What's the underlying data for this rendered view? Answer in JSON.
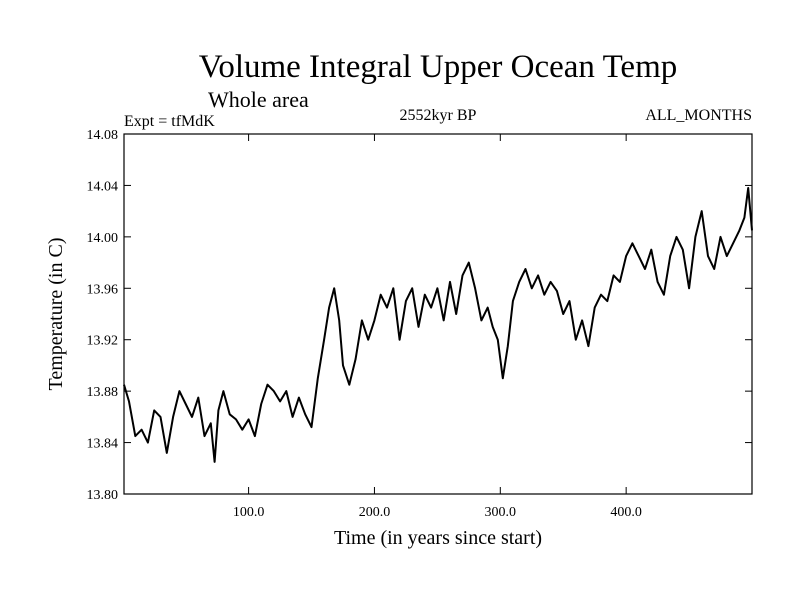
{
  "chart_data": {
    "type": "line",
    "title": "Volume Integral Upper Ocean Temp",
    "subtitle": "Whole area",
    "left_label": "Expt = tfMdK",
    "center_label": "2552kyr BP",
    "right_label": "ALL_MONTHS",
    "xlabel": "Time (in years since start)",
    "ylabel": "Temperature (in C)",
    "xlim": [
      1,
      500
    ],
    "ylim": [
      13.8,
      14.08
    ],
    "x_ticks": [
      100,
      200,
      300,
      400
    ],
    "x_tick_labels": [
      "100.0",
      "200.0",
      "300.0",
      "400.0"
    ],
    "y_ticks": [
      13.8,
      13.84,
      13.88,
      13.92,
      13.96,
      14.0,
      14.04,
      14.08
    ],
    "y_tick_labels": [
      "13.80",
      "13.84",
      "13.88",
      "13.92",
      "13.96",
      "14.00",
      "14.04",
      "14.08"
    ],
    "line_color": "#000000",
    "series": [
      {
        "name": "Volume Integral Upper Ocean Temp",
        "x": [
          1,
          5,
          10,
          15,
          20,
          25,
          30,
          35,
          40,
          45,
          50,
          55,
          60,
          65,
          70,
          73,
          76,
          80,
          85,
          90,
          95,
          100,
          105,
          110,
          115,
          120,
          125,
          130,
          135,
          140,
          145,
          150,
          155,
          160,
          164,
          168,
          172,
          175,
          180,
          185,
          190,
          195,
          200,
          205,
          210,
          215,
          220,
          225,
          230,
          235,
          240,
          245,
          250,
          255,
          260,
          265,
          270,
          275,
          280,
          285,
          290,
          294,
          298,
          302,
          306,
          310,
          315,
          320,
          325,
          330,
          335,
          340,
          345,
          350,
          355,
          360,
          365,
          370,
          375,
          380,
          385,
          390,
          395,
          400,
          405,
          410,
          415,
          420,
          425,
          430,
          435,
          440,
          445,
          450,
          455,
          460,
          465,
          470,
          475,
          480,
          485,
          490,
          494,
          497,
          500
        ],
        "y": [
          13.885,
          13.872,
          13.845,
          13.85,
          13.84,
          13.865,
          13.86,
          13.832,
          13.86,
          13.88,
          13.87,
          13.86,
          13.875,
          13.845,
          13.855,
          13.825,
          13.865,
          13.88,
          13.862,
          13.858,
          13.85,
          13.858,
          13.845,
          13.87,
          13.885,
          13.88,
          13.872,
          13.88,
          13.86,
          13.875,
          13.862,
          13.852,
          13.89,
          13.92,
          13.945,
          13.96,
          13.935,
          13.9,
          13.885,
          13.905,
          13.935,
          13.92,
          13.935,
          13.955,
          13.945,
          13.96,
          13.92,
          13.95,
          13.96,
          13.93,
          13.955,
          13.945,
          13.96,
          13.935,
          13.965,
          13.94,
          13.97,
          13.98,
          13.96,
          13.935,
          13.945,
          13.93,
          13.92,
          13.89,
          13.915,
          13.95,
          13.965,
          13.975,
          13.96,
          13.97,
          13.955,
          13.965,
          13.958,
          13.94,
          13.95,
          13.92,
          13.935,
          13.915,
          13.945,
          13.955,
          13.95,
          13.97,
          13.965,
          13.985,
          13.995,
          13.985,
          13.975,
          13.99,
          13.965,
          13.955,
          13.985,
          14.0,
          13.99,
          13.96,
          14.0,
          14.02,
          13.985,
          13.975,
          14.0,
          13.985,
          13.995,
          14.005,
          14.015,
          14.038,
          14.005
        ]
      }
    ]
  }
}
